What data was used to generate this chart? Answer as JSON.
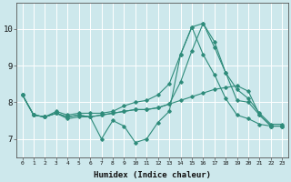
{
  "background_color": "#cde8ec",
  "grid_color": "#ffffff",
  "line_color": "#2e8b7a",
  "xlabel": "Humidex (Indice chaleur)",
  "ylim": [
    6.5,
    10.7
  ],
  "xlim": [
    -0.5,
    23.5
  ],
  "yticks": [
    7,
    8,
    9,
    10
  ],
  "xticks": [
    0,
    1,
    2,
    3,
    4,
    5,
    6,
    7,
    8,
    9,
    10,
    11,
    12,
    13,
    14,
    15,
    16,
    17,
    18,
    19,
    20,
    21,
    22,
    23
  ],
  "series": [
    [
      8.2,
      7.65,
      7.6,
      7.75,
      7.65,
      7.7,
      7.7,
      7.7,
      7.75,
      7.9,
      8.0,
      8.05,
      8.2,
      8.5,
      9.3,
      10.05,
      10.15,
      9.65,
      8.8,
      8.35,
      8.1,
      7.7,
      7.4,
      7.4
    ],
    [
      8.2,
      7.65,
      7.6,
      7.7,
      7.55,
      7.6,
      7.6,
      7.0,
      7.5,
      7.35,
      6.9,
      7.0,
      7.45,
      7.75,
      9.3,
      10.05,
      9.3,
      8.75,
      8.1,
      7.65,
      7.55,
      7.4,
      7.35,
      7.35
    ],
    [
      8.2,
      7.65,
      7.6,
      7.7,
      7.6,
      7.65,
      7.6,
      7.65,
      7.7,
      7.75,
      7.8,
      7.8,
      7.85,
      7.95,
      8.55,
      9.4,
      10.15,
      9.5,
      8.8,
      8.05,
      8.0,
      7.65,
      7.35,
      7.35
    ],
    [
      8.2,
      7.65,
      7.6,
      7.7,
      7.6,
      7.65,
      7.6,
      7.65,
      7.7,
      7.75,
      7.8,
      7.8,
      7.85,
      7.95,
      8.05,
      8.15,
      8.25,
      8.35,
      8.4,
      8.45,
      8.3,
      7.65,
      7.35,
      7.35
    ]
  ]
}
